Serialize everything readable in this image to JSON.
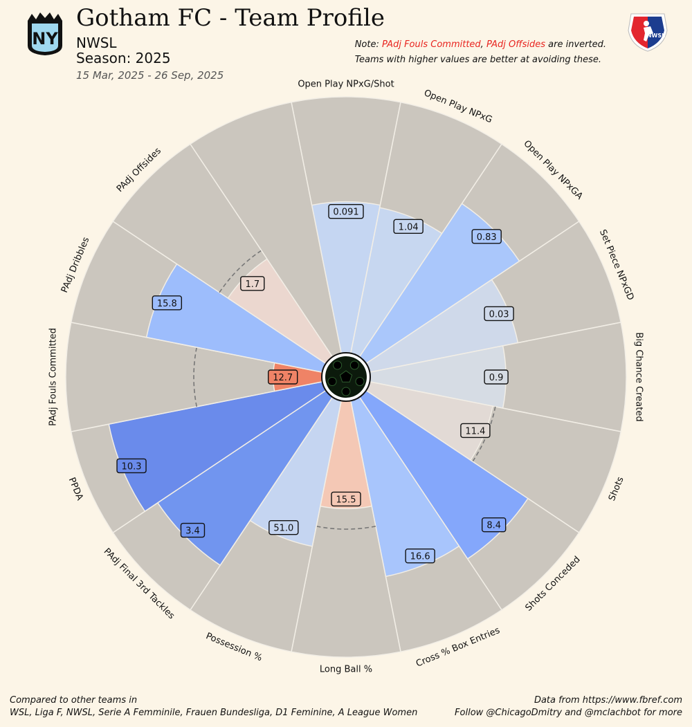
{
  "header": {
    "title": "Gotham FC - Team Profile",
    "league": "NWSL",
    "season": "Season: 2025",
    "date_range": "15 Mar, 2025 - 26 Sep, 2025",
    "team_logo_text": "NY",
    "league_logo_text": "NWSL"
  },
  "note": {
    "prefix": "Note: ",
    "red1": "PAdj Fouls Committed",
    "sep": ", ",
    "red2": "PAdj Offsides",
    "suffix": " are inverted.",
    "line2": "Teams with higher values are better at avoiding these."
  },
  "footer": {
    "left_line1": "Compared to other teams in",
    "left_line2": "WSL, Liga F, NWSL, Serie A Femminile, Frauen Bundesliga, D1 Feminine, A League Women",
    "right_line1": "Data from https://www.fbref.com",
    "right_line2": "Follow @ChicagoDmitry and @mclachbot for more"
  },
  "colors": {
    "background": "#fcf5e7",
    "slice_bg": "#cbc6be",
    "inverted_text": "#e8241f"
  },
  "chart_data": {
    "type": "pie",
    "subtype": "radial_bar_pizza",
    "title": "Gotham FC - Team Profile",
    "center": [
      500,
      545
    ],
    "outer_radius": 405,
    "inner_radius": 35,
    "categories": [
      "Open Play NPxG/Shot",
      "Open Play NPxG",
      "Open Play NPxGA",
      "Set Piece NPxGD",
      "Big Chance Created",
      "Shots",
      "Shots Conceded",
      "Cross % Box Entries",
      "Long Ball %",
      "Possession %",
      "PAdj Final 3rd Tackles",
      "PPDA",
      "PAdj Fouls Committed",
      "PAdj Dribbles",
      "PAdj Offsides"
    ],
    "slices": [
      {
        "label": "Open Play NPxG/Shot",
        "value": "0.091",
        "percentile": 59,
        "color": "#c5d6f2",
        "dashed": false
      },
      {
        "label": "Open Play NPxG",
        "value": "1.04",
        "percentile": 58,
        "color": "#c7d7f0",
        "dashed": false
      },
      {
        "label": "Open Play NPxGA",
        "value": "0.83",
        "percentile": 72,
        "color": "#aac7fb",
        "dashed": false
      },
      {
        "label": "Set Piece NPxGD",
        "value": "0.03",
        "percentile": 59,
        "color": "#cfd9ea",
        "dashed": false
      },
      {
        "label": "Big Chance Created",
        "value": "0.9",
        "percentile": 53,
        "color": "#d6dce4",
        "dashed": false
      },
      {
        "label": "Shots",
        "value": "11.4",
        "percentile": 49,
        "color": "#e2dad5",
        "dashed": true
      },
      {
        "label": "Shots Conceded",
        "value": "8.4",
        "percentile": 76,
        "color": "#84a7fb",
        "dashed": false
      },
      {
        "label": "Cross % Box Entries",
        "value": "16.6",
        "percentile": 70,
        "color": "#a8c5fc",
        "dashed": false
      },
      {
        "label": "Long Ball %",
        "value": "15.5",
        "percentile": 42,
        "color": "#f4c8b5",
        "dashed": true
      },
      {
        "label": "Possession %",
        "value": "51.0",
        "percentile": 58,
        "color": "#c5d5f1",
        "dashed": false
      },
      {
        "label": "PAdj Final 3rd Tackles",
        "value": "3.4",
        "percentile": 79,
        "color": "#7195ef",
        "dashed": false
      },
      {
        "label": "PPDA",
        "value": "10.3",
        "percentile": 85,
        "color": "#6a8beb",
        "dashed": false
      },
      {
        "label": "PAdj Fouls Committed",
        "value": "12.7",
        "percentile": 19,
        "color": "#ef8366",
        "dashed": true
      },
      {
        "label": "PAdj Dribbles",
        "value": "15.8",
        "percentile": 70,
        "color": "#9dbdfc",
        "dashed": false
      },
      {
        "label": "PAdj Offsides",
        "value": "1.7",
        "percentile": 46,
        "color": "#ebd7cf",
        "dashed": true
      },
      {
        "label": "",
        "value": "",
        "percentile": 0,
        "color": "#cbc6be",
        "dashed": false
      }
    ],
    "inverted_metrics": [
      "PAdj Fouls Committed",
      "PAdj Offsides"
    ],
    "xlabel": "",
    "ylabel": "",
    "ylim": [
      0,
      100
    ],
    "grid": false,
    "legend": "none"
  }
}
